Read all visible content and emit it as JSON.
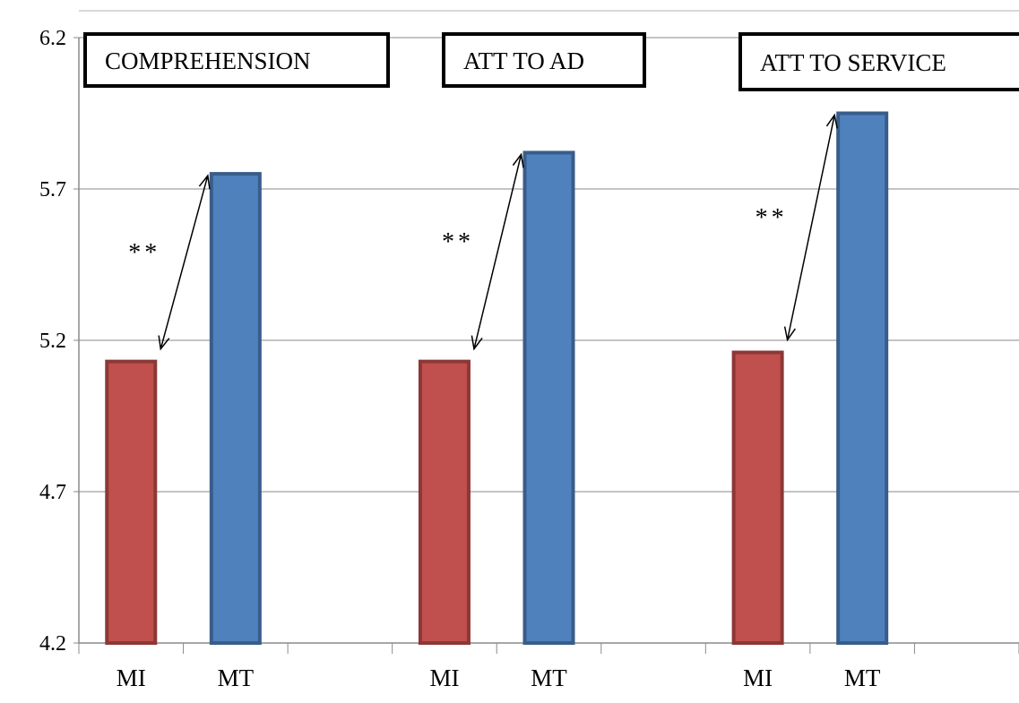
{
  "chart_data": {
    "type": "bar",
    "ylim": [
      4.2,
      6.2
    ],
    "yticks": [
      4.2,
      4.7,
      5.2,
      5.7,
      6.2
    ],
    "grid": true,
    "legend": "none",
    "groups": [
      {
        "title": "COMPREHENSION",
        "categories": [
          "MI",
          "MT"
        ],
        "values": [
          5.13,
          5.75
        ],
        "significance": "**"
      },
      {
        "title": "ATT TO AD",
        "categories": [
          "MI",
          "MT"
        ],
        "values": [
          5.13,
          5.82
        ],
        "significance": "**"
      },
      {
        "title": "ATT TO SERVICE",
        "categories": [
          "MI",
          "MT"
        ],
        "values": [
          5.16,
          5.95
        ],
        "significance": "**"
      }
    ],
    "colors": {
      "MI": "#c0504d",
      "MT": "#4f81bd",
      "MI_border": "#8c3836",
      "MT_border": "#385d8a"
    }
  }
}
